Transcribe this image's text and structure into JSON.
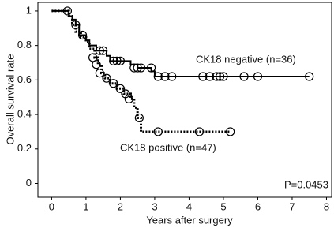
{
  "chart_data": {
    "type": "survival",
    "x_label": "Years after surgery",
    "y_label": "Overall survival rate",
    "annotation": "P=0.0453",
    "xlim": [
      -0.4,
      8.15
    ],
    "ylim": [
      -0.08,
      1.05
    ],
    "xticks": [
      0,
      1,
      2,
      3,
      4,
      5,
      6,
      7,
      8
    ],
    "yticks": [
      0,
      0.2,
      0.4,
      0.6,
      0.8,
      1
    ],
    "series": [
      {
        "name": "CK18 negative (n=36)",
        "color": "#000000",
        "dashed": false,
        "x": [
          0,
          0.5,
          0.6,
          0.7,
          0.8,
          1.0,
          1.1,
          1.3,
          1.6,
          1.7,
          2.3,
          2.5,
          2.9,
          3.0,
          7.5
        ],
        "values": [
          1,
          0.97,
          0.95,
          0.92,
          0.86,
          0.83,
          0.8,
          0.77,
          0.74,
          0.71,
          0.69,
          0.67,
          0.65,
          0.62,
          0.62
        ],
        "censored_x": [
          0.46,
          0.7,
          0.9,
          1.4,
          1.5,
          1.8,
          1.9,
          2.0,
          2.4,
          2.5,
          2.6,
          2.9,
          3.1,
          3.3,
          3.5,
          4.4,
          4.6,
          4.8,
          4.9,
          5.0,
          5.6,
          6.0,
          7.5
        ],
        "censored_values": [
          1,
          0.92,
          0.86,
          0.77,
          0.77,
          0.71,
          0.71,
          0.71,
          0.67,
          0.67,
          0.67,
          0.67,
          0.62,
          0.62,
          0.62,
          0.62,
          0.62,
          0.62,
          0.62,
          0.62,
          0.62,
          0.62,
          0.62
        ]
      },
      {
        "name": "CK18 positive (n=47)",
        "color": "#000000",
        "dashed": true,
        "x": [
          0,
          0.5,
          0.6,
          0.7,
          0.85,
          1.0,
          1.1,
          1.25,
          1.35,
          1.45,
          1.55,
          1.7,
          1.9,
          2.1,
          2.3,
          2.4,
          2.5,
          2.6,
          5.2
        ],
        "values": [
          1,
          0.97,
          0.92,
          0.88,
          0.85,
          0.82,
          0.78,
          0.73,
          0.69,
          0.64,
          0.61,
          0.58,
          0.55,
          0.52,
          0.49,
          0.44,
          0.38,
          0.3,
          0.3
        ],
        "censored_x": [
          1.2,
          1.3,
          1.4,
          1.6,
          1.8,
          2.0,
          2.15,
          2.25,
          2.55,
          3.1,
          4.3,
          5.2
        ],
        "censored_values": [
          0.73,
          0.69,
          0.64,
          0.61,
          0.58,
          0.55,
          0.52,
          0.49,
          0.38,
          0.3,
          0.3,
          0.3
        ]
      }
    ]
  }
}
